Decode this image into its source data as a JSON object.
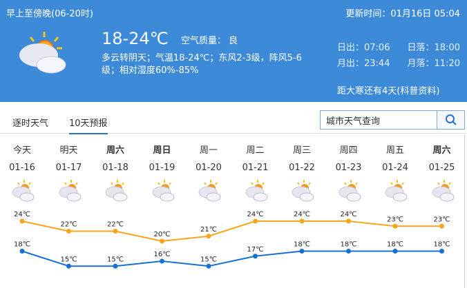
{
  "header": {
    "period": "早上至傍晚(06-20时)",
    "update_time": "更新时间：01月16日 05:04",
    "temp": "18-24℃",
    "air_quality": "空气质量： 良",
    "desc_line1": "多云转阴天；气温18-24℃；东风2-3级，阵风5-6",
    "desc_line2": "级；相对湿度60%-85%",
    "sunrise": "日出：07:06",
    "sunset": "日落：18:00",
    "moonrise": "月出：23:44",
    "moonset": "月落：11:20",
    "solar_term": "距大寒还有4天(科普资料)",
    "icon": "partly-cloudy-icon"
  },
  "tabs": [
    {
      "label": "逐时天气"
    },
    {
      "label": "10天预报",
      "active": true
    }
  ],
  "search": {
    "value": "城市天气查询"
  },
  "colors": {
    "header": "#3d8ad9",
    "high": "#f7a51c",
    "low": "#1670d3"
  },
  "days": [
    {
      "name": "今天",
      "date": "01-16",
      "bold": false
    },
    {
      "name": "明天",
      "date": "01-17",
      "bold": false
    },
    {
      "name": "周六",
      "date": "01-18",
      "bold": true
    },
    {
      "name": "周日",
      "date": "01-19",
      "bold": true
    },
    {
      "name": "周一",
      "date": "01-20",
      "bold": false
    },
    {
      "name": "周二",
      "date": "01-21",
      "bold": false
    },
    {
      "name": "周三",
      "date": "01-22",
      "bold": false
    },
    {
      "name": "周四",
      "date": "01-23",
      "bold": false
    },
    {
      "name": "周五",
      "date": "01-24",
      "bold": false
    },
    {
      "name": "周六",
      "date": "01-25",
      "bold": true
    }
  ],
  "chart_data": {
    "type": "line",
    "categories": [
      "01-16",
      "01-17",
      "01-18",
      "01-19",
      "01-20",
      "01-21",
      "01-22",
      "01-23",
      "01-24",
      "01-25"
    ],
    "unit": "℃",
    "series": [
      {
        "values": [
          24,
          22,
          22,
          20,
          21,
          24,
          24,
          24,
          23,
          23
        ],
        "color": "#f7a51c"
      },
      {
        "values": [
          18,
          15,
          15,
          16,
          15,
          17,
          18,
          18,
          18,
          18
        ],
        "color": "#1670d3"
      }
    ]
  }
}
